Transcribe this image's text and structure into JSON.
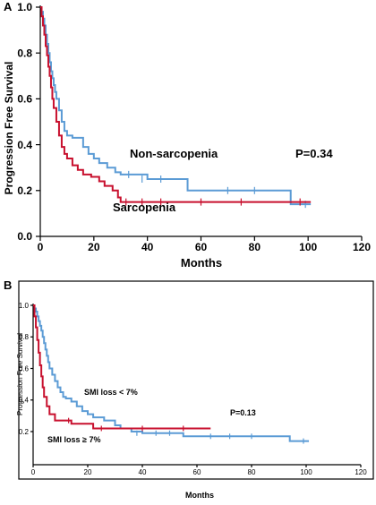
{
  "colors": {
    "blue": "#5b9bd5",
    "red": "#c8102e",
    "axis": "#000000"
  },
  "chart_data": [
    {
      "type": "line",
      "panel_label": "A",
      "xlabel": "Months",
      "ylabel": "Progression Free Survival",
      "xlim": [
        0,
        120
      ],
      "ylim": [
        0.0,
        1.0
      ],
      "xticks": [
        "0",
        "20",
        "40",
        "60",
        "80",
        "100",
        "120"
      ],
      "yticks": [
        "0.0",
        "0.2",
        "0.4",
        "0.6",
        "0.8",
        "1.0"
      ],
      "grid": false,
      "annotations": [
        {
          "text": "Non-sarcopenia",
          "series": "Non-sarcopenia"
        },
        {
          "text": "Sarcopenia",
          "series": "Sarcopenia"
        },
        {
          "text": "P=0.34"
        }
      ],
      "series": [
        {
          "name": "Non-sarcopenia",
          "color": "#5b9bd5",
          "steps": [
            [
              0,
              1.0
            ],
            [
              0.5,
              0.98
            ],
            [
              1,
              0.95
            ],
            [
              1.5,
              0.92
            ],
            [
              2,
              0.88
            ],
            [
              2.5,
              0.84
            ],
            [
              3,
              0.8
            ],
            [
              3.5,
              0.76
            ],
            [
              4,
              0.72
            ],
            [
              4.5,
              0.69
            ],
            [
              5,
              0.66
            ],
            [
              5.5,
              0.63
            ],
            [
              6,
              0.6
            ],
            [
              7,
              0.55
            ],
            [
              8,
              0.5
            ],
            [
              9,
              0.46
            ],
            [
              10,
              0.44
            ],
            [
              12,
              0.43
            ],
            [
              14,
              0.43
            ],
            [
              16,
              0.39
            ],
            [
              18,
              0.36
            ],
            [
              20,
              0.34
            ],
            [
              22,
              0.32
            ],
            [
              25,
              0.3
            ],
            [
              28,
              0.28
            ],
            [
              30,
              0.27
            ],
            [
              35,
              0.27
            ],
            [
              40,
              0.25
            ],
            [
              48,
              0.25
            ],
            [
              55,
              0.2
            ],
            [
              93,
              0.2
            ],
            [
              93.5,
              0.14
            ],
            [
              101,
              0.14
            ]
          ],
          "censored": [
            [
              33,
              0.27
            ],
            [
              38,
              0.25
            ],
            [
              45,
              0.25
            ],
            [
              70,
              0.2
            ],
            [
              80,
              0.2
            ],
            [
              99,
              0.14
            ]
          ]
        },
        {
          "name": "Sarcopenia",
          "color": "#c8102e",
          "steps": [
            [
              0,
              1.0
            ],
            [
              0.5,
              0.96
            ],
            [
              1,
              0.92
            ],
            [
              1.5,
              0.88
            ],
            [
              2,
              0.83
            ],
            [
              2.5,
              0.79
            ],
            [
              3,
              0.74
            ],
            [
              3.5,
              0.7
            ],
            [
              4,
              0.65
            ],
            [
              4.5,
              0.6
            ],
            [
              5,
              0.56
            ],
            [
              6,
              0.5
            ],
            [
              7,
              0.44
            ],
            [
              8,
              0.39
            ],
            [
              9,
              0.36
            ],
            [
              10,
              0.34
            ],
            [
              12,
              0.31
            ],
            [
              14,
              0.29
            ],
            [
              16,
              0.27
            ],
            [
              19,
              0.26
            ],
            [
              22,
              0.24
            ],
            [
              24,
              0.22
            ],
            [
              27,
              0.2
            ],
            [
              29,
              0.17
            ],
            [
              30,
              0.15
            ],
            [
              101,
              0.15
            ]
          ],
          "censored": [
            [
              32,
              0.15
            ],
            [
              38,
              0.15
            ],
            [
              45,
              0.15
            ],
            [
              60,
              0.15
            ],
            [
              75,
              0.15
            ],
            [
              97,
              0.15
            ]
          ]
        }
      ]
    },
    {
      "type": "line",
      "panel_label": "B",
      "xlabel": "Months",
      "ylabel": "Progression Free Survival",
      "xlim": [
        0,
        120
      ],
      "ylim": [
        0.0,
        1.0
      ],
      "xticks": [
        "0",
        "20",
        "40",
        "60",
        "80",
        "100",
        "120"
      ],
      "yticks": [
        "0.2",
        "0.4",
        "0.6",
        "0.8",
        "1.0"
      ],
      "grid": false,
      "annotations": [
        {
          "text": "SMI loss < 7%",
          "series": "SMI loss < 7%"
        },
        {
          "text": "SMI loss ≥ 7%",
          "series": "SMI loss ≥ 7%"
        },
        {
          "text": "P=0.13"
        }
      ],
      "series": [
        {
          "name": "SMI loss < 7%",
          "color": "#5b9bd5",
          "steps": [
            [
              0,
              1.0
            ],
            [
              0.5,
              0.98
            ],
            [
              1,
              0.96
            ],
            [
              1.5,
              0.93
            ],
            [
              2,
              0.9
            ],
            [
              2.5,
              0.87
            ],
            [
              3,
              0.84
            ],
            [
              3.5,
              0.8
            ],
            [
              4,
              0.76
            ],
            [
              4.5,
              0.72
            ],
            [
              5,
              0.68
            ],
            [
              5.5,
              0.64
            ],
            [
              6,
              0.6
            ],
            [
              7,
              0.56
            ],
            [
              8,
              0.52
            ],
            [
              9,
              0.48
            ],
            [
              10,
              0.45
            ],
            [
              11,
              0.42
            ],
            [
              12,
              0.41
            ],
            [
              14,
              0.39
            ],
            [
              16,
              0.36
            ],
            [
              18,
              0.33
            ],
            [
              20,
              0.31
            ],
            [
              22,
              0.29
            ],
            [
              26,
              0.27
            ],
            [
              30,
              0.24
            ],
            [
              32,
              0.22
            ],
            [
              36,
              0.2
            ],
            [
              40,
              0.19
            ],
            [
              55,
              0.17
            ],
            [
              93,
              0.17
            ],
            [
              94,
              0.14
            ],
            [
              101,
              0.14
            ]
          ],
          "censored": [
            [
              38,
              0.19
            ],
            [
              45,
              0.19
            ],
            [
              50,
              0.19
            ],
            [
              65,
              0.17
            ],
            [
              72,
              0.17
            ],
            [
              80,
              0.17
            ],
            [
              99,
              0.14
            ]
          ]
        },
        {
          "name": "SMI loss ≥ 7%",
          "color": "#c8102e",
          "steps": [
            [
              0,
              1.0
            ],
            [
              0.5,
              0.93
            ],
            [
              1,
              0.86
            ],
            [
              1.5,
              0.78
            ],
            [
              2,
              0.7
            ],
            [
              2.5,
              0.62
            ],
            [
              3,
              0.55
            ],
            [
              3.5,
              0.48
            ],
            [
              4,
              0.42
            ],
            [
              5,
              0.36
            ],
            [
              6,
              0.31
            ],
            [
              8,
              0.27
            ],
            [
              11,
              0.27
            ],
            [
              12,
              0.27
            ],
            [
              14,
              0.25
            ],
            [
              21,
              0.25
            ],
            [
              22,
              0.22
            ],
            [
              65,
              0.22
            ]
          ],
          "censored": [
            [
              13,
              0.27
            ],
            [
              25,
              0.22
            ],
            [
              40,
              0.22
            ],
            [
              55,
              0.22
            ]
          ]
        }
      ]
    }
  ]
}
